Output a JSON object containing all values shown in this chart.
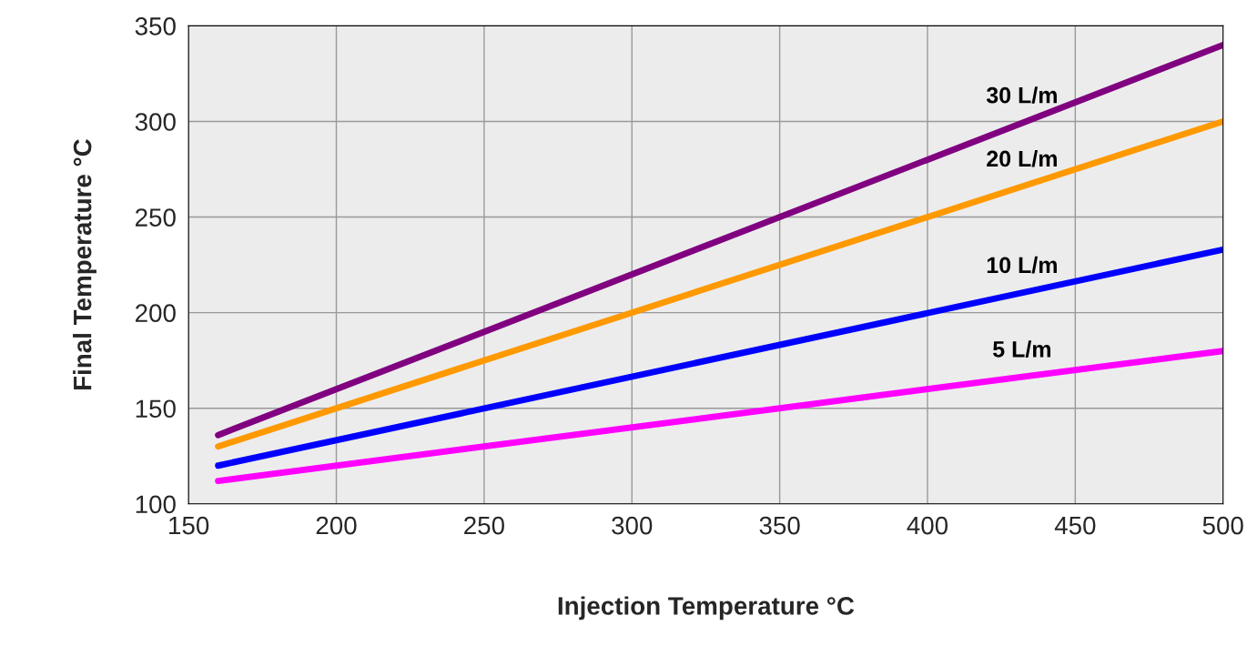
{
  "chart_data": {
    "type": "line",
    "xlabel": "Injection Temperature °C",
    "ylabel": "Final Temperature °C",
    "x": [
      160,
      500
    ],
    "series": [
      {
        "name": "30 L/m",
        "color": "#800080",
        "values": [
          136,
          340
        ]
      },
      {
        "name": "20 L/m",
        "color": "#ff9900",
        "values": [
          130,
          300
        ]
      },
      {
        "name": "10 L/m",
        "color": "#0000ff",
        "values": [
          120,
          233
        ]
      },
      {
        "name": "5 L/m",
        "color": "#ff00ff",
        "values": [
          112,
          180
        ]
      }
    ],
    "xlim": [
      150,
      500
    ],
    "ylim": [
      100,
      350
    ],
    "xticks": [
      150,
      200,
      250,
      300,
      350,
      400,
      450,
      500
    ],
    "yticks": [
      100,
      150,
      200,
      250,
      300,
      350
    ],
    "grid": true,
    "legend": false
  }
}
